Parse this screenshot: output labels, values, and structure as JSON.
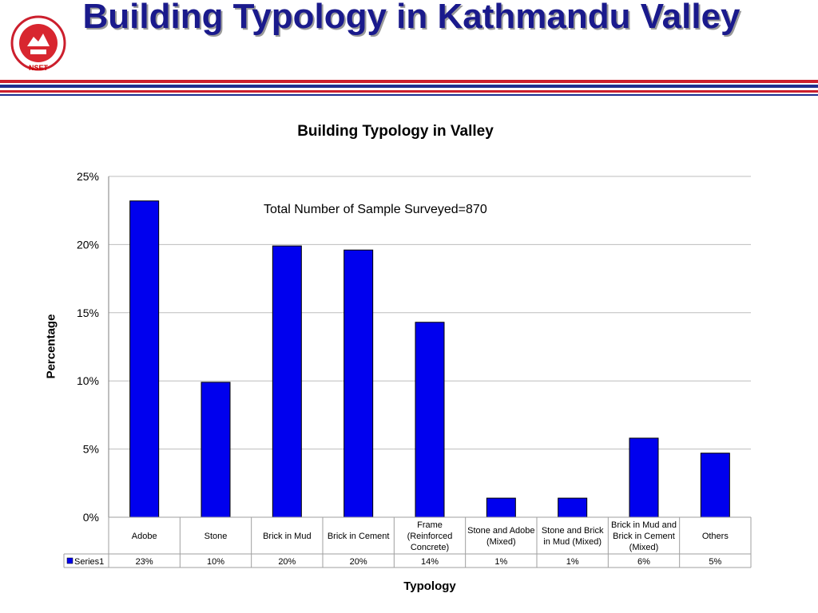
{
  "slide": {
    "title": "Building Typology in Kathmandu Valley",
    "logo_label": "NSET"
  },
  "colors": {
    "title": "#1a1a8c",
    "bar_fill": "#0000ee",
    "rule_red": "#cc1f2d",
    "rule_blue": "#1f2f8f"
  },
  "chart_data": {
    "type": "bar",
    "title": "Building Typology in Valley",
    "annotation": "Total Number of Sample Surveyed=870",
    "xlabel": "Typology",
    "ylabel": "Percentage",
    "ylim": [
      0,
      25
    ],
    "y_ticks": [
      "0%",
      "5%",
      "10%",
      "15%",
      "20%",
      "25%"
    ],
    "grid": true,
    "categories": [
      "Adobe",
      "Stone",
      "Brick in Mud",
      "Brick in Cement",
      "Frame (Reinforced Concrete)",
      "Stone and Adobe (Mixed)",
      "Stone and Brick in Mud (Mixed)",
      "Brick in Mud and Brick in Cement (Mixed)",
      "Others"
    ],
    "series": [
      {
        "name": "Series1",
        "values": [
          23.2,
          9.9,
          19.9,
          19.6,
          14.3,
          1.4,
          1.4,
          5.8,
          4.7
        ],
        "labels": [
          "23%",
          "10%",
          "20%",
          "20%",
          "14%",
          "1%",
          "1%",
          "6%",
          "5%"
        ]
      }
    ]
  }
}
